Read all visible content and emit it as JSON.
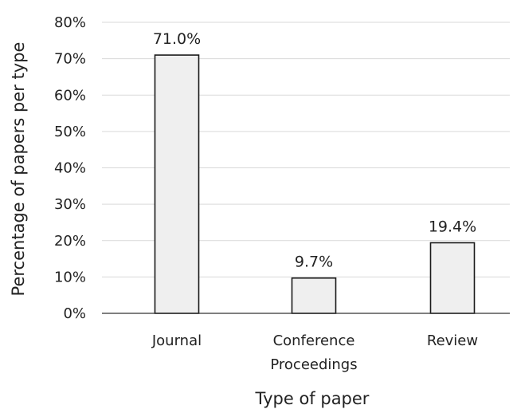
{
  "chart_data": {
    "type": "bar",
    "categories": [
      [
        "Journal"
      ],
      [
        "Conference",
        "Proceedings"
      ],
      [
        "Review"
      ]
    ],
    "values": [
      71.0,
      9.7,
      19.4
    ],
    "data_labels": [
      "71.0%",
      "9.7%",
      "19.4%"
    ],
    "xlabel": "Type of paper",
    "ylabel": "Percentage of papers per type",
    "ylim": [
      0,
      80
    ],
    "yticks": [
      0,
      10,
      20,
      30,
      40,
      50,
      60,
      70,
      80
    ],
    "ytick_labels": [
      "0%",
      "10%",
      "20%",
      "30%",
      "40%",
      "50%",
      "60%",
      "70%",
      "80%"
    ],
    "grid": true,
    "legend": "none",
    "colors": {
      "bar_fill": "#efefef",
      "bar_stroke": "#1a1a1a",
      "grid": "#d9d9d9"
    }
  }
}
